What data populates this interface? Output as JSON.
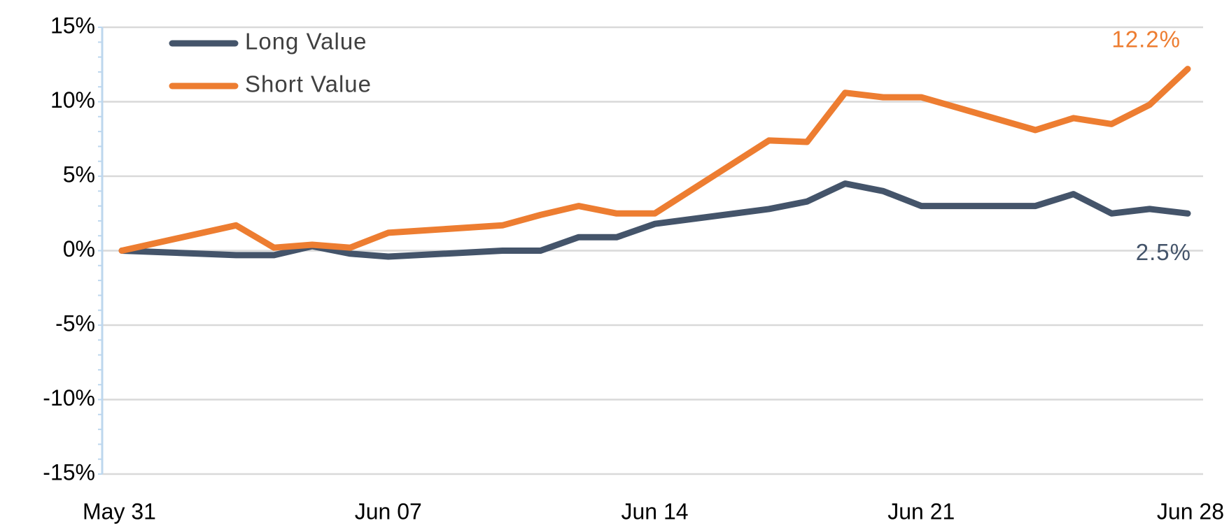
{
  "chart_data": {
    "type": "line",
    "x": [
      "May 31",
      "Jun 03",
      "Jun 04",
      "Jun 05",
      "Jun 06",
      "Jun 07",
      "Jun 10",
      "Jun 11",
      "Jun 12",
      "Jun 13",
      "Jun 14",
      "Jun 17",
      "Jun 18",
      "Jun 19",
      "Jun 20",
      "Jun 21",
      "Jun 24",
      "Jun 25",
      "Jun 26",
      "Jun 27",
      "Jun 28"
    ],
    "series": [
      {
        "name": "Long Value",
        "color": "#44546a",
        "values": [
          0,
          -0.3,
          -0.3,
          0.3,
          -0.2,
          -0.4,
          0,
          0,
          0.9,
          0.9,
          1.8,
          2.8,
          3.3,
          4.5,
          4.0,
          3.0,
          3.0,
          3.8,
          2.5,
          2.8,
          2.5
        ],
        "value_labels": [
          null,
          null,
          null,
          null,
          null,
          null,
          null,
          null,
          null,
          null,
          null,
          null,
          null,
          null,
          null,
          null,
          null,
          null,
          null,
          null,
          "2.5%"
        ]
      },
      {
        "name": "Short Value",
        "color": "#ed7d31",
        "values": [
          0,
          1.7,
          0.2,
          0.4,
          0.2,
          1.2,
          1.7,
          2.4,
          3.0,
          2.5,
          2.5,
          7.4,
          7.3,
          10.6,
          10.3,
          10.3,
          8.1,
          8.9,
          8.5,
          9.8,
          12.2
        ],
        "value_labels": [
          null,
          null,
          null,
          null,
          null,
          null,
          null,
          null,
          null,
          null,
          null,
          null,
          null,
          null,
          null,
          null,
          null,
          null,
          null,
          null,
          "12.2%"
        ]
      }
    ],
    "xlim": [
      "May 31",
      "Jun 28"
    ],
    "xticks": [
      "May 31",
      "Jun 07",
      "Jun 14",
      "Jun 21",
      "Jun 28"
    ],
    "ylim": [
      -15,
      15
    ],
    "yticks": [
      {
        "value": -15,
        "label": "-15%"
      },
      {
        "value": -10,
        "label": "-10%"
      },
      {
        "value": -5,
        "label": "-5%"
      },
      {
        "value": 0,
        "label": "0%"
      },
      {
        "value": 5,
        "label": "5%"
      },
      {
        "value": 10,
        "label": "10%"
      },
      {
        "value": 15,
        "label": "15%"
      }
    ],
    "grid": true,
    "legend": "top-left"
  }
}
